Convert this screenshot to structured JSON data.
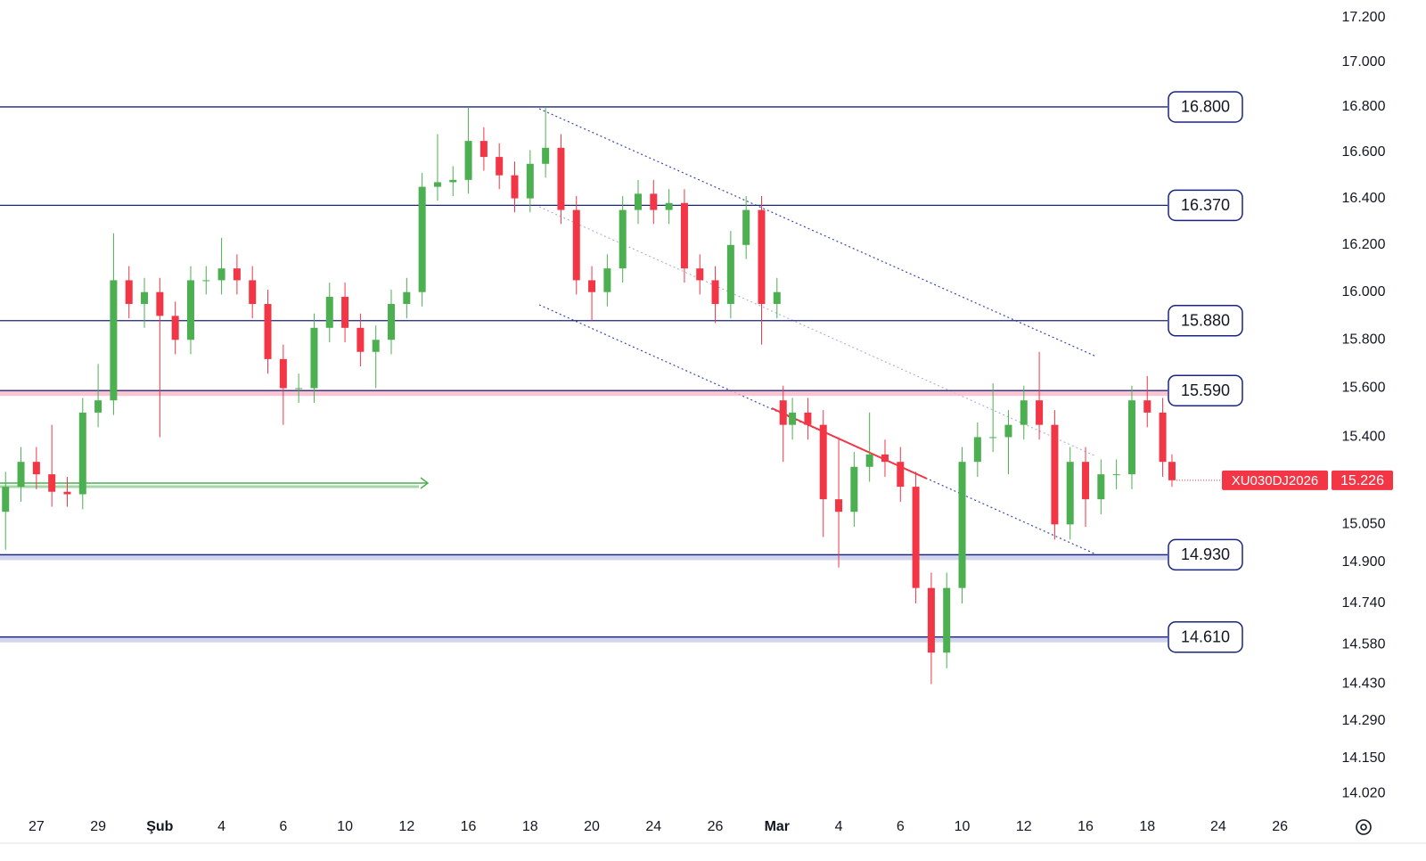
{
  "chart_data": {
    "type": "candlestick",
    "symbol": "XU030DJ2026",
    "log_scale": true,
    "up_color": "#4caf50",
    "down_color": "#f23645",
    "x": [
      -1,
      -0.5,
      0,
      0.5,
      1,
      1.5,
      2,
      2.5,
      3,
      3.5,
      4,
      4.5,
      5,
      5.5,
      6,
      6.5,
      7,
      7.5,
      8,
      8.5,
      9,
      9.5,
      10,
      10.5,
      11,
      11.5,
      12,
      12.5,
      13,
      13.5,
      14,
      14.5,
      15,
      15.5,
      16,
      16.5,
      17,
      17.5,
      18,
      18.5,
      19,
      19.5,
      20,
      20.5,
      21,
      21.5,
      22,
      22.5,
      23,
      23.5,
      24,
      24.2,
      24.5,
      25,
      25.5,
      26,
      26.5,
      27,
      27.5,
      28,
      28.5,
      29,
      29.5,
      30,
      30.5,
      31,
      31.5,
      32,
      32.5,
      33,
      33.5,
      34,
      34.5,
      35,
      35.5,
      36,
      36.5,
      36.8
    ],
    "open": [
      15.1,
      15.2,
      15.3,
      15.25,
      15.18,
      15.17,
      15.5,
      15.55,
      16.05,
      15.95,
      16.0,
      15.9,
      15.8,
      16.05,
      16.05,
      16.1,
      16.05,
      15.95,
      15.72,
      15.6,
      15.6,
      15.85,
      15.98,
      15.85,
      15.75,
      15.8,
      15.95,
      16.0,
      16.45,
      16.47,
      16.48,
      16.65,
      16.58,
      16.5,
      16.4,
      16.55,
      16.62,
      16.35,
      16.05,
      16.0,
      16.1,
      16.35,
      16.42,
      16.35,
      16.38,
      16.1,
      16.05,
      15.95,
      16.2,
      16.35,
      15.95,
      15.55,
      15.45,
      15.5,
      15.45,
      15.15,
      15.1,
      15.28,
      15.33,
      15.3,
      15.2,
      14.8,
      14.55,
      14.8,
      15.3,
      15.4,
      15.4,
      15.45,
      15.55,
      15.45,
      15.05,
      15.3,
      15.15,
      15.25,
      15.25,
      15.55,
      15.5,
      15.3
    ],
    "high": [
      15.26,
      15.36,
      15.36,
      15.45,
      15.24,
      15.56,
      15.7,
      16.25,
      16.11,
      16.06,
      16.06,
      15.96,
      16.11,
      16.11,
      16.23,
      16.16,
      16.11,
      16.01,
      15.78,
      15.66,
      15.91,
      16.04,
      16.04,
      15.91,
      15.86,
      16.01,
      16.06,
      16.51,
      16.68,
      16.54,
      16.8,
      16.71,
      16.64,
      16.56,
      16.61,
      16.8,
      16.68,
      16.41,
      16.11,
      16.16,
      16.41,
      16.48,
      16.48,
      16.44,
      16.44,
      16.16,
      16.11,
      16.26,
      16.41,
      16.41,
      16.06,
      15.61,
      15.56,
      15.56,
      15.51,
      15.4,
      15.34,
      15.5,
      15.39,
      15.36,
      15.26,
      14.86,
      14.86,
      15.36,
      15.46,
      15.62,
      15.51,
      15.61,
      15.75,
      15.51,
      15.36,
      15.36,
      15.31,
      15.31,
      15.61,
      15.65,
      15.56,
      15.33
    ],
    "low": [
      14.95,
      15.14,
      15.19,
      15.12,
      15.12,
      15.11,
      15.44,
      15.49,
      15.89,
      15.85,
      15.4,
      15.74,
      15.74,
      15.99,
      15.99,
      15.99,
      15.89,
      15.66,
      15.45,
      15.54,
      15.54,
      15.79,
      15.79,
      15.69,
      15.6,
      15.74,
      15.89,
      15.94,
      16.39,
      16.41,
      16.42,
      16.52,
      16.44,
      16.34,
      16.34,
      16.49,
      16.29,
      15.99,
      15.88,
      15.94,
      16.04,
      16.29,
      16.29,
      16.29,
      16.04,
      15.99,
      15.87,
      15.89,
      16.14,
      15.78,
      15.89,
      15.3,
      15.39,
      15.39,
      15.0,
      14.88,
      15.04,
      15.22,
      15.24,
      15.14,
      14.74,
      14.43,
      14.49,
      14.74,
      15.24,
      15.34,
      15.25,
      15.39,
      15.39,
      14.99,
      14.99,
      15.04,
      15.09,
      15.19,
      15.19,
      15.44,
      15.24,
      15.2
    ],
    "close": [
      15.2,
      15.3,
      15.25,
      15.18,
      15.17,
      15.5,
      15.55,
      16.05,
      15.95,
      16.0,
      15.9,
      15.8,
      16.05,
      16.05,
      16.1,
      16.05,
      15.95,
      15.72,
      15.6,
      15.6,
      15.85,
      15.98,
      15.85,
      15.75,
      15.8,
      15.95,
      16.0,
      16.45,
      16.47,
      16.48,
      16.65,
      16.58,
      16.5,
      16.4,
      16.55,
      16.62,
      16.35,
      16.05,
      16.0,
      16.1,
      16.35,
      16.42,
      16.35,
      16.38,
      16.1,
      16.05,
      15.95,
      16.2,
      16.35,
      15.95,
      16.0,
      15.45,
      15.5,
      15.45,
      15.15,
      15.1,
      15.28,
      15.33,
      15.3,
      15.2,
      14.8,
      14.55,
      14.8,
      15.3,
      15.4,
      15.4,
      15.45,
      15.55,
      15.45,
      15.05,
      15.3,
      15.15,
      15.25,
      15.25,
      15.55,
      15.5,
      15.3,
      15.226
    ],
    "xlim": [
      -1.18,
      42.0
    ],
    "xticks": [
      {
        "value": 0,
        "label": "27"
      },
      {
        "value": 2,
        "label": "29"
      },
      {
        "value": 4,
        "label": "Şub"
      },
      {
        "value": 6,
        "label": "4"
      },
      {
        "value": 8,
        "label": "6"
      },
      {
        "value": 10,
        "label": "10"
      },
      {
        "value": 12,
        "label": "12"
      },
      {
        "value": 14,
        "label": "16"
      },
      {
        "value": 16,
        "label": "18"
      },
      {
        "value": 18,
        "label": "20"
      },
      {
        "value": 20,
        "label": "24"
      },
      {
        "value": 22,
        "label": "26"
      },
      {
        "value": 24,
        "label": "Mar"
      },
      {
        "value": 26,
        "label": "4"
      },
      {
        "value": 28,
        "label": "6"
      },
      {
        "value": 30,
        "label": "10"
      },
      {
        "value": 32,
        "label": "12"
      },
      {
        "value": 34,
        "label": "16"
      },
      {
        "value": 36,
        "label": "18"
      },
      {
        "value": 38.3,
        "label": "24"
      },
      {
        "value": 40.3,
        "label": "26"
      }
    ],
    "ylim": [
      13.955,
      17.28
    ],
    "yticks": [
      {
        "value": 17.2,
        "label": "17.200"
      },
      {
        "value": 17.0,
        "label": "17.000"
      },
      {
        "value": 16.8,
        "label": "16.800"
      },
      {
        "value": 16.6,
        "label": "16.600"
      },
      {
        "value": 16.4,
        "label": "16.400"
      },
      {
        "value": 16.2,
        "label": "16.200"
      },
      {
        "value": 16.0,
        "label": "16.000"
      },
      {
        "value": 15.8,
        "label": "15.800"
      },
      {
        "value": 15.6,
        "label": "15.600"
      },
      {
        "value": 15.4,
        "label": "15.400"
      },
      {
        "value": 15.05,
        "label": "15.050"
      },
      {
        "value": 14.9,
        "label": "14.900"
      },
      {
        "value": 14.74,
        "label": "14.740"
      },
      {
        "value": 14.58,
        "label": "14.580"
      },
      {
        "value": 14.43,
        "label": "14.430"
      },
      {
        "value": 14.29,
        "label": "14.290"
      },
      {
        "value": 14.15,
        "label": "14.150"
      },
      {
        "value": 14.02,
        "label": "14.020"
      }
    ],
    "levels": [
      {
        "value": 16.8,
        "label": "16.800",
        "color": "#1a237e"
      },
      {
        "value": 16.37,
        "label": "16.370",
        "color": "#1a237e"
      },
      {
        "value": 15.88,
        "label": "15.880",
        "color": "#1a237e"
      },
      {
        "value": 15.59,
        "label": "15.590",
        "color": "#1a237e",
        "band": "#f8b7c4"
      },
      {
        "value": 14.93,
        "label": "14.930",
        "color": "#1a237e",
        "band": "#c5cae9"
      },
      {
        "value": 14.61,
        "label": "14.610",
        "color": "#1a237e",
        "band": "#c5cae9"
      }
    ],
    "last_price": {
      "value": 15.226,
      "label": "15.226"
    }
  }
}
